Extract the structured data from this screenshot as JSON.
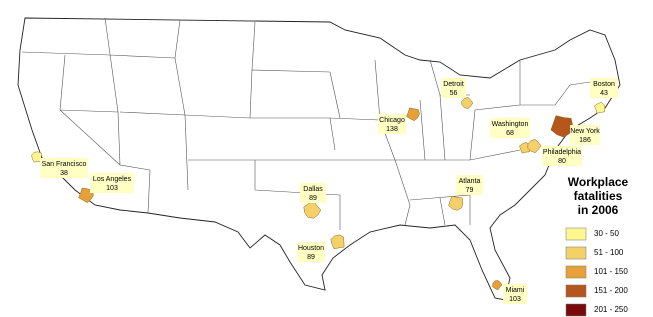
{
  "title": [
    "Workplace",
    "fatalities",
    "in 2006"
  ],
  "legend": [
    {
      "label": "30 - 50",
      "color": "#fff68f"
    },
    {
      "label": "51 - 100",
      "color": "#f3d06a"
    },
    {
      "label": "101 - 150",
      "color": "#e6a03a"
    },
    {
      "label": "151 - 200",
      "color": "#b5561c"
    },
    {
      "label": "201 - 250",
      "color": "#780b0b"
    }
  ],
  "cities": [
    {
      "name": "San Francisco",
      "value": 38
    },
    {
      "name": "Los Angeles",
      "value": 103
    },
    {
      "name": "Dallas",
      "value": 89
    },
    {
      "name": "Houston",
      "value": 89
    },
    {
      "name": "Chicago",
      "value": 138
    },
    {
      "name": "Detroit",
      "value": 56
    },
    {
      "name": "Washington",
      "value": 68
    },
    {
      "name": "New York",
      "value": 186
    },
    {
      "name": "Philadelphia",
      "value": 80
    },
    {
      "name": "Boston",
      "value": 43
    },
    {
      "name": "Atlanta",
      "value": 79
    },
    {
      "name": "Miami",
      "value": 103
    }
  ]
}
